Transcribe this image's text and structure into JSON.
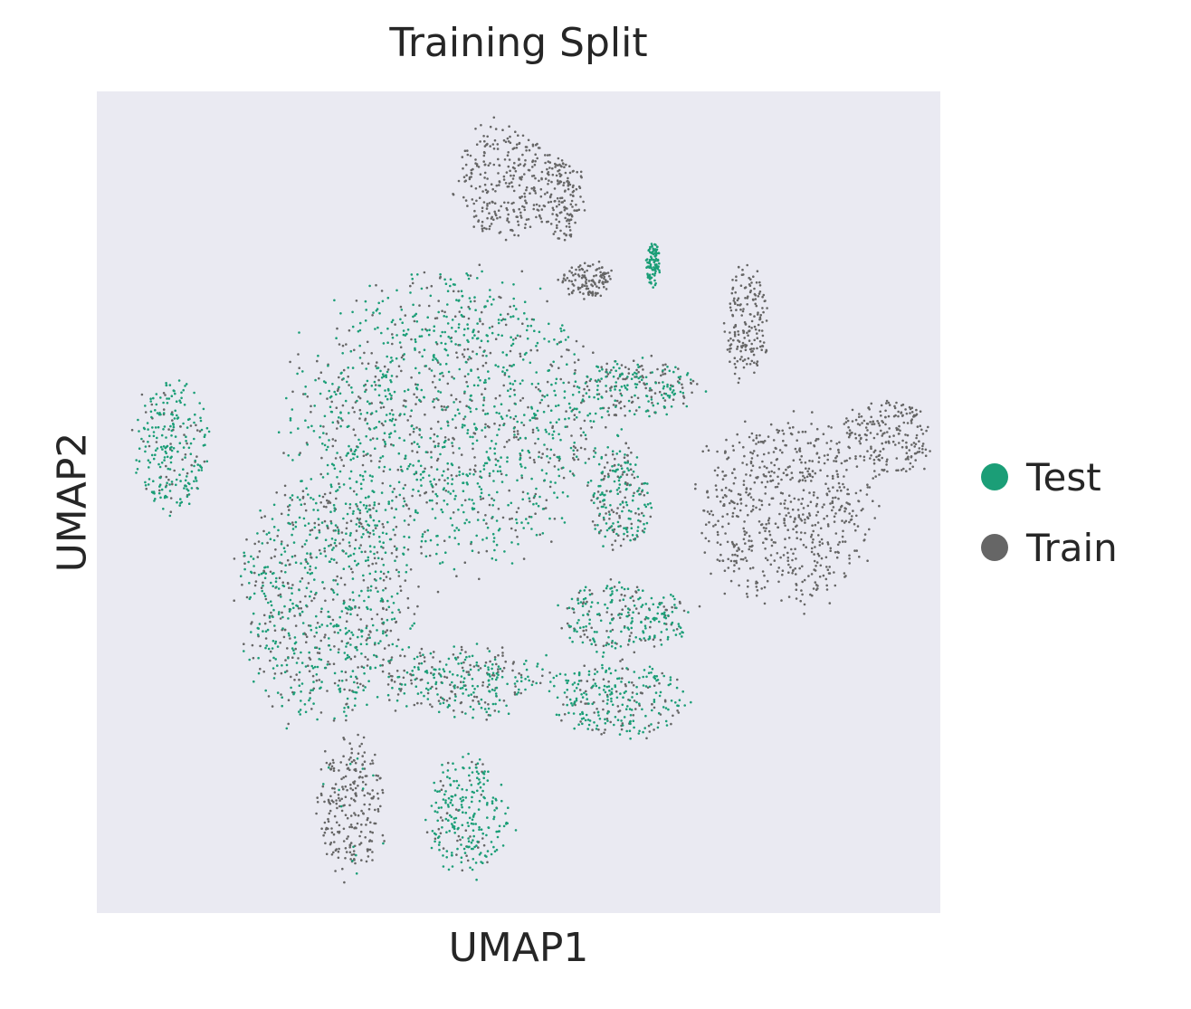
{
  "chart_data": {
    "type": "scatter",
    "title": "Training Split",
    "xlabel": "UMAP1",
    "ylabel": "UMAP2",
    "grid": false,
    "ticks": false,
    "legend_position": "right",
    "xlim": [
      0,
      100
    ],
    "ylim": [
      0,
      100
    ],
    "series": [
      {
        "name": "Test",
        "color": "#1b9e77"
      },
      {
        "name": "Train",
        "color": "#666666"
      }
    ],
    "clusters": [
      {
        "id": "top-large",
        "cx": 48,
        "cy": 89,
        "rx": 5.5,
        "ry": 6.5,
        "test_fraction": 0.0
      },
      {
        "id": "top-right-small",
        "cx": 55,
        "cy": 87,
        "rx": 2.5,
        "ry": 5,
        "test_fraction": 0.0
      },
      {
        "id": "small-mid",
        "cx": 58,
        "cy": 77,
        "rx": 3,
        "ry": 2,
        "test_fraction": 0.0
      },
      {
        "id": "thin-streak",
        "cx": 66,
        "cy": 79,
        "rx": 0.8,
        "ry": 2.5,
        "test_fraction": 1.0
      },
      {
        "id": "right-column",
        "cx": 77,
        "cy": 72,
        "rx": 2.5,
        "ry": 7,
        "test_fraction": 0.0
      },
      {
        "id": "left-island",
        "cx": 9,
        "cy": 57,
        "rx": 4,
        "ry": 8,
        "test_fraction": 0.8
      },
      {
        "id": "main-mass",
        "cx": 42,
        "cy": 60,
        "rx": 18,
        "ry": 17,
        "test_fraction": 0.65
      },
      {
        "id": "left-arms",
        "cx": 27,
        "cy": 38,
        "rx": 10,
        "ry": 14,
        "test_fraction": 0.55
      },
      {
        "id": "mid-upper",
        "cx": 64,
        "cy": 64,
        "rx": 7,
        "ry": 3.5,
        "test_fraction": 0.55
      },
      {
        "id": "mid-small",
        "cx": 62,
        "cy": 50,
        "rx": 3.5,
        "ry": 6.5,
        "test_fraction": 0.6
      },
      {
        "id": "right-large",
        "cx": 82,
        "cy": 49,
        "rx": 10,
        "ry": 11,
        "test_fraction": 0.0
      },
      {
        "id": "right-arm",
        "cx": 94,
        "cy": 58,
        "rx": 5,
        "ry": 4.5,
        "test_fraction": 0.0
      },
      {
        "id": "mid-lower1",
        "cx": 62,
        "cy": 36,
        "rx": 8,
        "ry": 4,
        "test_fraction": 0.65
      },
      {
        "id": "mid-lower2",
        "cx": 62,
        "cy": 26,
        "rx": 8,
        "ry": 4.5,
        "test_fraction": 0.65
      },
      {
        "id": "bottom-tail",
        "cx": 44,
        "cy": 28,
        "rx": 10,
        "ry": 4,
        "test_fraction": 0.6
      },
      {
        "id": "bottom-left",
        "cx": 30,
        "cy": 13,
        "rx": 4,
        "ry": 8,
        "test_fraction": 0.05
      },
      {
        "id": "bottom-mid",
        "cx": 44,
        "cy": 12,
        "rx": 4.5,
        "ry": 7,
        "test_fraction": 0.85
      }
    ]
  }
}
